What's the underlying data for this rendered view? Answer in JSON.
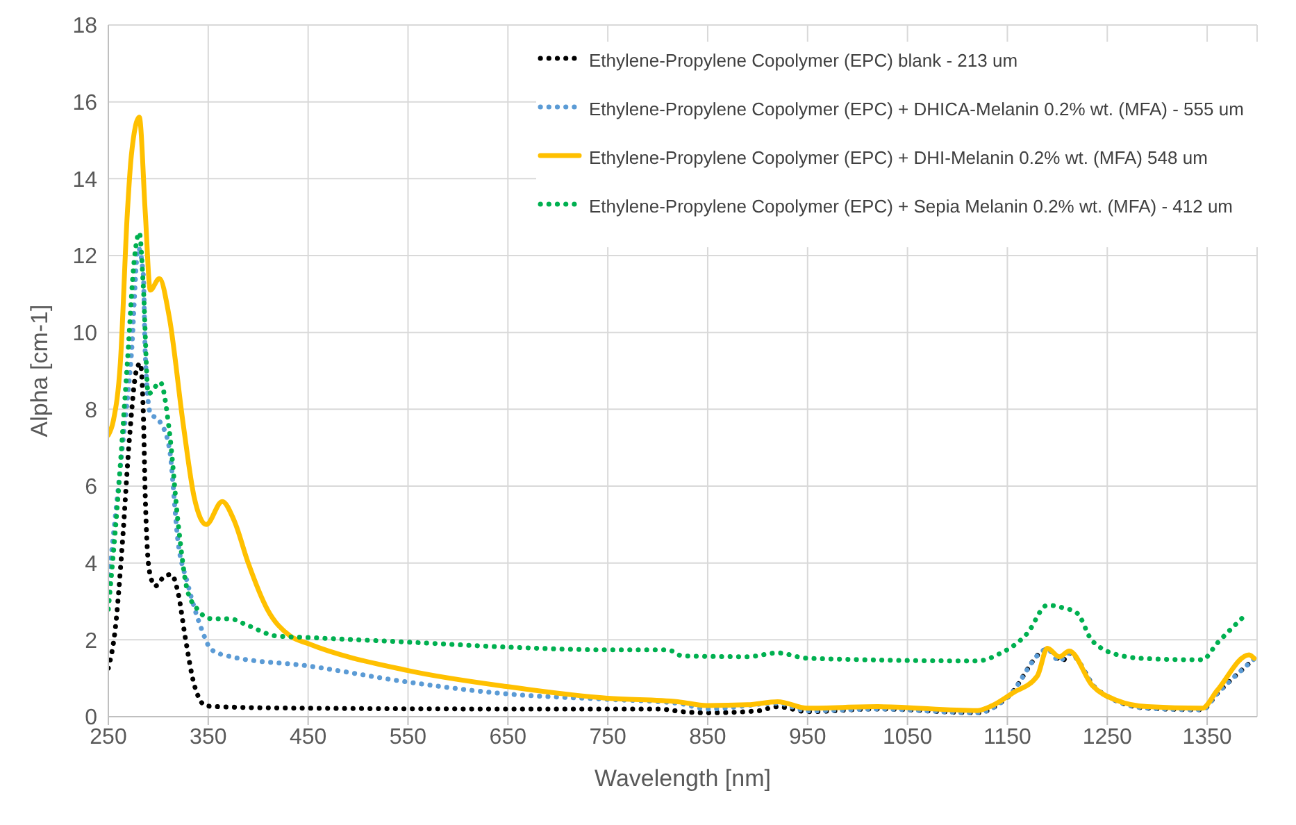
{
  "chart_data": {
    "type": "line",
    "xlabel": "Wavelength [nm]",
    "ylabel": "Alpha [cm-1]",
    "xlim": [
      250,
      1400
    ],
    "xticks": [
      250,
      350,
      450,
      550,
      650,
      750,
      850,
      950,
      1050,
      1150,
      1250,
      1350
    ],
    "ylim": [
      0,
      18
    ],
    "yticks": [
      0,
      2,
      4,
      6,
      8,
      10,
      12,
      14,
      16,
      18
    ],
    "grid": true,
    "legend": "top right",
    "marker": "none",
    "series": [
      {
        "name": "Ethylene-Propylene Copolymer (EPC) blank - 213 um",
        "color": "#000000",
        "line_style": "dotted",
        "x": [
          250,
          257,
          264,
          271,
          278,
          282,
          285,
          287,
          291,
          297,
          306,
          313,
          320,
          327,
          336,
          348,
          371,
          450,
          650,
          800,
          825,
          850,
          900,
          920,
          950,
          1020,
          1120,
          1150,
          1190,
          1205,
          1212,
          1240,
          1290,
          1345,
          1360,
          1397
        ],
        "values": [
          1.26,
          2.3,
          4.5,
          7.2,
          9.0,
          9.2,
          7.9,
          5.7,
          3.8,
          3.4,
          3.65,
          3.7,
          3.2,
          2.06,
          0.83,
          0.28,
          0.25,
          0.22,
          0.2,
          0.2,
          0.13,
          0.1,
          0.15,
          0.26,
          0.13,
          0.2,
          0.1,
          0.5,
          1.75,
          1.45,
          1.65,
          0.7,
          0.22,
          0.18,
          0.6,
          1.5
        ]
      },
      {
        "name": "Ethylene-Propylene Copolymer (EPC) + DHICA-Melanin 0.2% wt. (MFA) - 555 um",
        "color": "#5b9bd5",
        "line_style": "dotted",
        "x": [
          250,
          264,
          273,
          280,
          285,
          287,
          292,
          301,
          311,
          320,
          329,
          343,
          353,
          371,
          450,
          550,
          650,
          750,
          820,
          850,
          920,
          950,
          1020,
          1120,
          1150,
          1190,
          1202,
          1212,
          1240,
          1290,
          1345,
          1360,
          1397
        ],
        "values": [
          3.47,
          7.0,
          9.4,
          12.2,
          11.5,
          9.4,
          7.9,
          7.7,
          7.0,
          4.5,
          3.5,
          2.3,
          1.75,
          1.57,
          1.32,
          0.9,
          0.59,
          0.45,
          0.35,
          0.2,
          0.35,
          0.15,
          0.2,
          0.1,
          0.5,
          1.75,
          1.45,
          1.65,
          0.7,
          0.22,
          0.18,
          0.6,
          1.5
        ]
      },
      {
        "name": "Ethylene-Propylene Copolymer (EPC) + DHI-Melanin 0.2% wt. (MFA) 548 um",
        "color": "#ffc000",
        "line_style": "solid",
        "x": [
          250,
          255,
          262,
          269,
          273,
          281,
          287,
          292,
          301,
          311,
          325,
          336,
          348,
          364,
          376,
          390,
          409,
          432,
          450,
          550,
          650,
          750,
          820,
          850,
          890,
          920,
          950,
          1020,
          1120,
          1135,
          1155,
          1180,
          1190,
          1202,
          1212,
          1235,
          1260,
          1290,
          1345,
          1360,
          1392,
          1397
        ],
        "values": [
          7.33,
          7.7,
          9.2,
          13.1,
          14.6,
          15.6,
          13.1,
          11.1,
          11.4,
          10.4,
          7.6,
          5.7,
          5.0,
          5.6,
          5.1,
          4.0,
          2.8,
          2.1,
          1.9,
          1.2,
          0.78,
          0.48,
          0.39,
          0.29,
          0.31,
          0.39,
          0.22,
          0.26,
          0.16,
          0.29,
          0.61,
          1.06,
          1.78,
          1.56,
          1.71,
          0.81,
          0.42,
          0.26,
          0.22,
          0.68,
          1.61,
          1.52
        ]
      },
      {
        "name": "Ethylene-Propylene Copolymer (EPC) + Sepia Melanin 0.2% wt. (MFA) - 412 um",
        "color": "#00b050",
        "line_style": "dotted",
        "x": [
          250,
          259,
          269,
          276,
          281,
          285,
          290,
          302,
          311,
          320,
          329,
          339,
          353,
          371,
          390,
          418,
          450,
          550,
          650,
          750,
          810,
          825,
          890,
          920,
          950,
          1120,
          1140,
          1170,
          1190,
          1205,
          1220,
          1235,
          1265,
          1290,
          1345,
          1360,
          1390
        ],
        "values": [
          2.8,
          5.5,
          9.2,
          11.9,
          12.6,
          11.2,
          8.4,
          8.7,
          7.45,
          5.0,
          3.3,
          2.8,
          2.55,
          2.55,
          2.37,
          2.1,
          2.06,
          1.94,
          1.81,
          1.74,
          1.74,
          1.58,
          1.56,
          1.66,
          1.52,
          1.45,
          1.61,
          2.17,
          2.9,
          2.84,
          2.69,
          1.97,
          1.58,
          1.51,
          1.48,
          1.91,
          2.69
        ]
      }
    ]
  }
}
